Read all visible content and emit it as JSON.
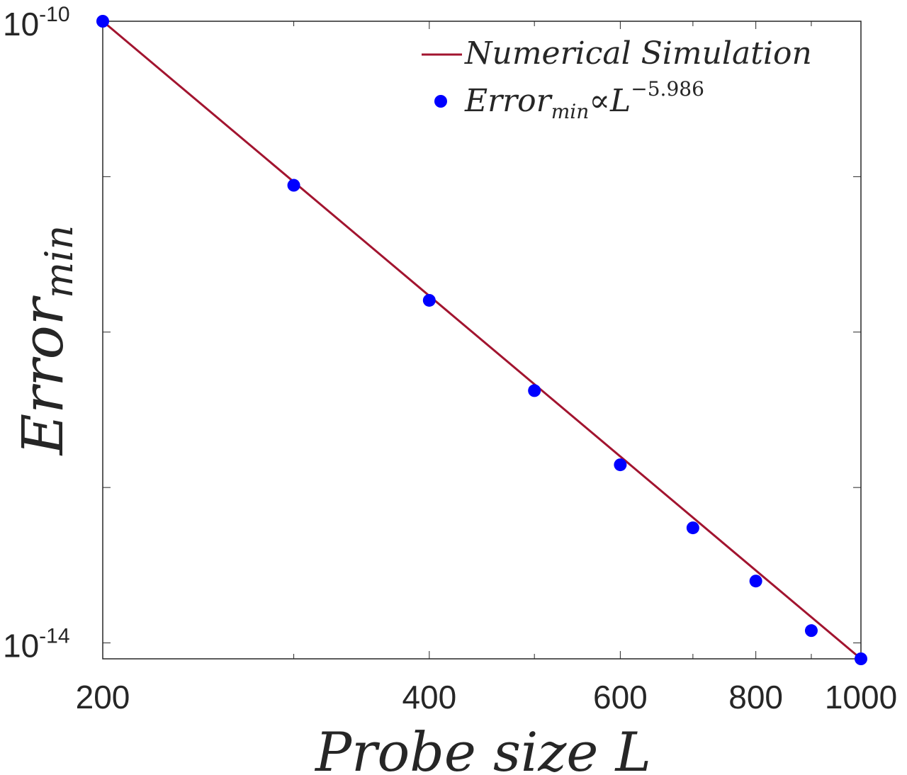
{
  "chart_data": {
    "type": "line",
    "title": "",
    "xlabel": "Probe size L",
    "ylabel_main": "Error",
    "ylabel_sub": "min",
    "xscale": "log",
    "yscale": "log",
    "xlim": [
      200,
      1000
    ],
    "ylim": [
      7.9e-15,
      1e-10
    ],
    "x_ticks": [
      200,
      400,
      600,
      800,
      1000
    ],
    "x_tick_labels": [
      "200",
      "400",
      "600",
      "800",
      "1000"
    ],
    "y_ticks": [
      1e-14,
      1e-10
    ],
    "y_tick_labels": [
      {
        "base": "10",
        "exp": "-14"
      },
      {
        "base": "10",
        "exp": "-10"
      }
    ],
    "legend": {
      "position": "top-right",
      "line_label": "Numerical Simulation",
      "marker_label_main": "Error",
      "marker_label_sub": "min",
      "marker_label_rel": "∝L",
      "marker_label_exp": "−5.986"
    },
    "series": [
      {
        "name": "Numerical Simulation",
        "style": "line",
        "color": "#a2142f",
        "x": [
          200,
          1000
        ],
        "y": [
          1e-10,
          7.9e-15
        ]
      },
      {
        "name": "Error_min ∝ L^-5.986",
        "style": "marker",
        "color": "#0000ff",
        "x": [
          200,
          300,
          400,
          500,
          600,
          700,
          800,
          900,
          1000
        ],
        "y": [
          1e-10,
          8.8e-12,
          1.6e-12,
          4.2e-13,
          1.4e-13,
          5.5e-14,
          2.5e-14,
          1.2e-14,
          7.9e-15
        ]
      }
    ]
  }
}
